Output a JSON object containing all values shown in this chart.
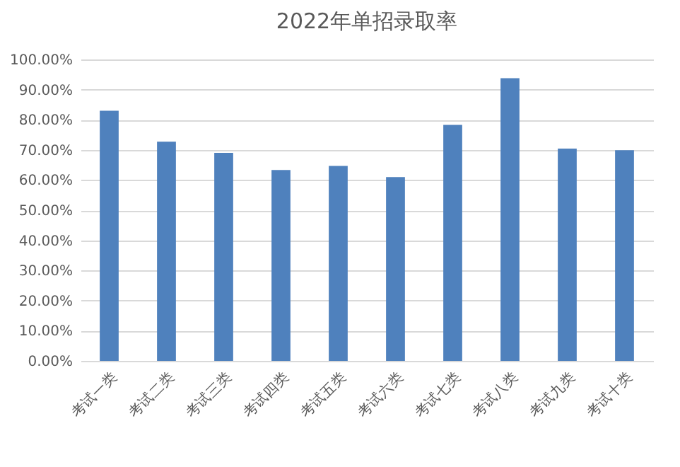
{
  "chart_data": {
    "type": "bar",
    "title": "2022年单招录取率",
    "categories": [
      "考试一类",
      "考试二类",
      "考试三类",
      "考试四类",
      "考试五类",
      "考试六类",
      "考试七类",
      "考试八类",
      "考试九类",
      "考试十类"
    ],
    "values": [
      83.0,
      72.7,
      69.0,
      63.3,
      64.7,
      61.0,
      78.3,
      93.8,
      70.4,
      69.9
    ],
    "color": "#4f81bd",
    "ylim": [
      0,
      100
    ],
    "yticks": [
      {
        "value": 0,
        "label": "0.00%"
      },
      {
        "value": 10,
        "label": "10.00%"
      },
      {
        "value": 20,
        "label": "20.00%"
      },
      {
        "value": 30,
        "label": "30.00%"
      },
      {
        "value": 40,
        "label": "40.00%"
      },
      {
        "value": 50,
        "label": "50.00%"
      },
      {
        "value": 60,
        "label": "60.00%"
      },
      {
        "value": 70,
        "label": "70.00%"
      },
      {
        "value": 80,
        "label": "80.00%"
      },
      {
        "value": 90,
        "label": "90.00%"
      },
      {
        "value": 100,
        "label": "100.00%"
      }
    ],
    "grid": "y"
  }
}
